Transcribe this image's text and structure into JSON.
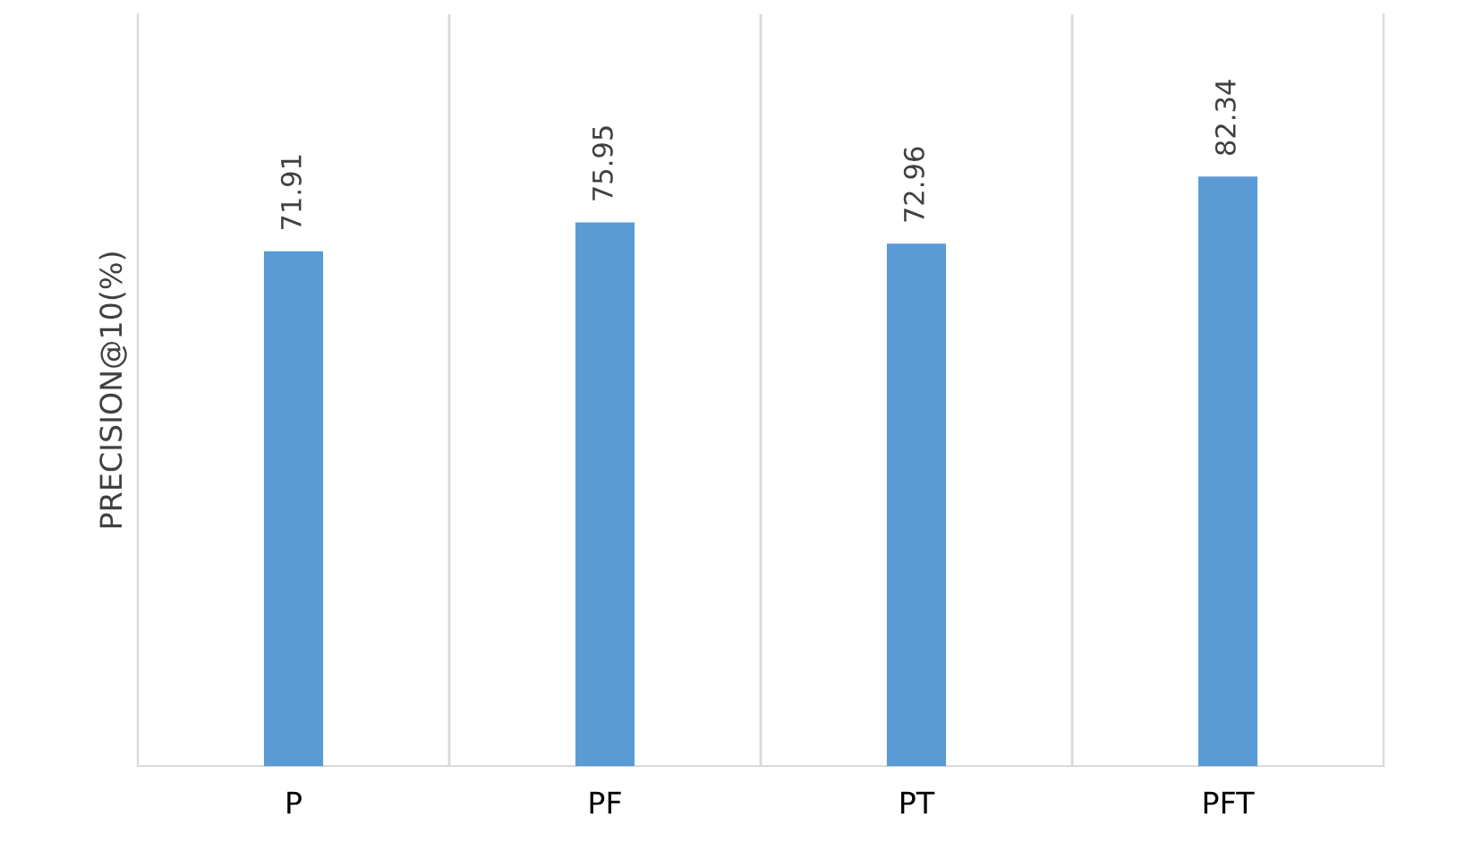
{
  "chart_data": {
    "type": "bar",
    "ylabel": "PRECISION@10(%)",
    "categories": [
      "P",
      "PF",
      "PT",
      "PFT"
    ],
    "values": [
      71.91,
      75.95,
      72.96,
      82.34
    ],
    "color": "#5b9bd5",
    "ylim": [
      0,
      105
    ],
    "data_labels": true,
    "grid": "x",
    "tick_labels": "x"
  }
}
